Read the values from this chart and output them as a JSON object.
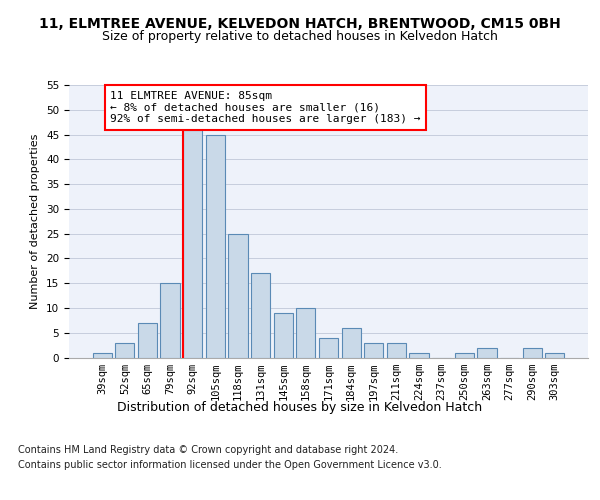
{
  "title": "11, ELMTREE AVENUE, KELVEDON HATCH, BRENTWOOD, CM15 0BH",
  "subtitle": "Size of property relative to detached houses in Kelvedon Hatch",
  "xlabel": "Distribution of detached houses by size in Kelvedon Hatch",
  "ylabel": "Number of detached properties",
  "categories": [
    "39sqm",
    "52sqm",
    "65sqm",
    "79sqm",
    "92sqm",
    "105sqm",
    "118sqm",
    "131sqm",
    "145sqm",
    "158sqm",
    "171sqm",
    "184sqm",
    "197sqm",
    "211sqm",
    "224sqm",
    "237sqm",
    "250sqm",
    "263sqm",
    "277sqm",
    "290sqm",
    "303sqm"
  ],
  "values": [
    1,
    3,
    7,
    15,
    46,
    45,
    25,
    17,
    9,
    10,
    4,
    6,
    3,
    3,
    1,
    0,
    1,
    2,
    0,
    2,
    1
  ],
  "bar_color": "#c9d9e8",
  "bar_edge_color": "#5a8ab5",
  "bar_edge_width": 0.8,
  "grid_color": "#c0c8d8",
  "bg_color": "#eef2fa",
  "annotation_line_color": "red",
  "annotation_box_text": "11 ELMTREE AVENUE: 85sqm\n← 8% of detached houses are smaller (16)\n92% of semi-detached houses are larger (183) →",
  "annotation_box_color": "white",
  "annotation_box_edge_color": "red",
  "ylim": [
    0,
    55
  ],
  "yticks": [
    0,
    5,
    10,
    15,
    20,
    25,
    30,
    35,
    40,
    45,
    50,
    55
  ],
  "footer_line1": "Contains HM Land Registry data © Crown copyright and database right 2024.",
  "footer_line2": "Contains public sector information licensed under the Open Government Licence v3.0.",
  "title_fontsize": 10,
  "subtitle_fontsize": 9,
  "xlabel_fontsize": 9,
  "ylabel_fontsize": 8,
  "tick_fontsize": 7.5,
  "footer_fontsize": 7,
  "annotation_fontsize": 8
}
